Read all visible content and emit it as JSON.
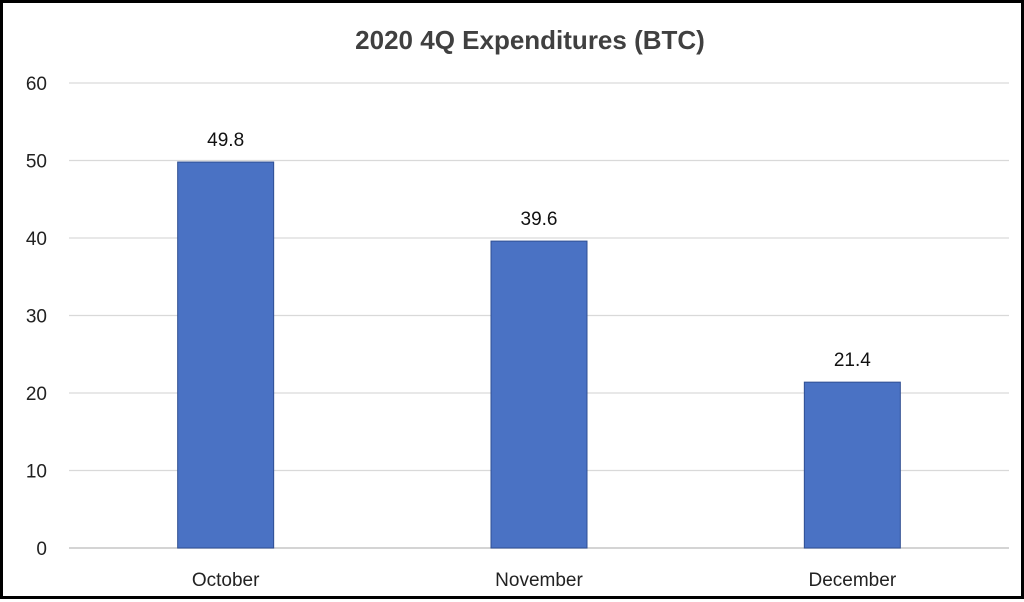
{
  "chart_data": {
    "type": "bar",
    "title": "2020 4Q Expenditures (BTC)",
    "xlabel": "",
    "ylabel": "",
    "categories": [
      "October",
      "November",
      "December"
    ],
    "values": [
      49.8,
      39.6,
      21.4
    ],
    "data_labels": [
      "49.8",
      "39.6",
      "21.4"
    ],
    "ylim": [
      0,
      60
    ],
    "yticks": [
      0,
      10,
      20,
      30,
      40,
      50,
      60
    ],
    "ytick_labels": [
      "0",
      "10",
      "20",
      "30",
      "40",
      "50",
      "60"
    ],
    "grid": true,
    "legend": "none",
    "bar_color": "#4a72c4",
    "bar_edge_color": "#2f4f93",
    "grid_color": "#d9d9d9"
  }
}
